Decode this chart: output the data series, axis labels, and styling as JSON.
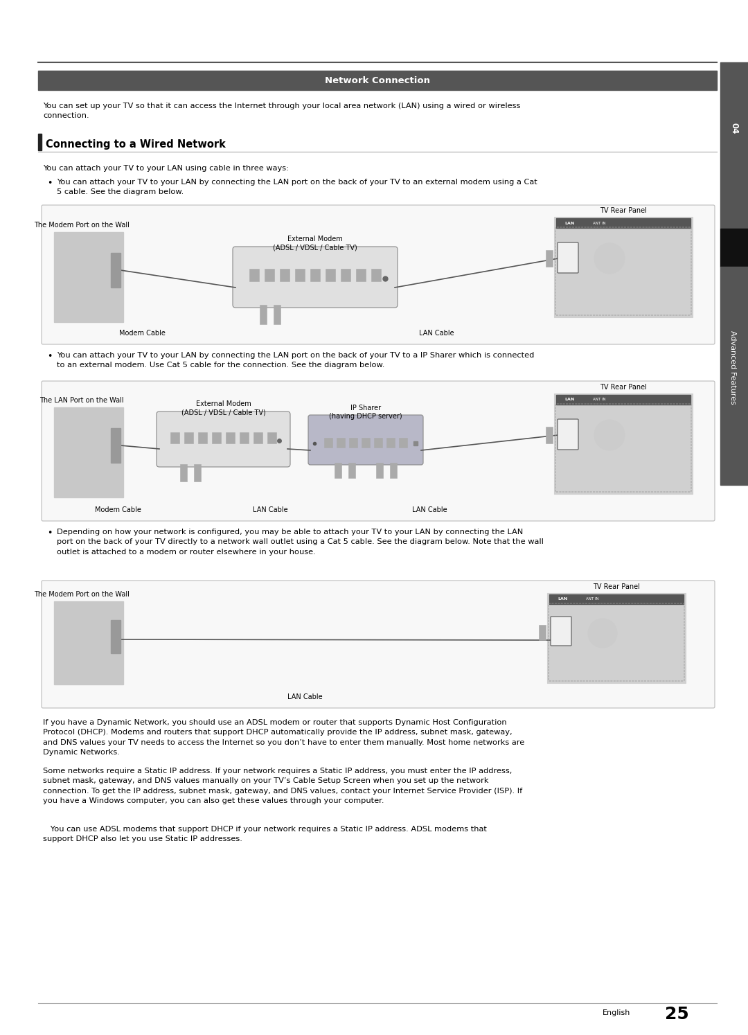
{
  "page_bg": "#ffffff",
  "sidebar_bg": "#555555",
  "sidebar_dark_color": "#111111",
  "header_bg": "#555555",
  "header_text": "Network Connection",
  "header_text_color": "#ffffff",
  "section_title": "Connecting to a Wired Network",
  "section_title_bar_color": "#222222",
  "body_font_size": 8.2,
  "title_font_size": 10.5,
  "header_font_size": 9.5,
  "intro_text": "You can set up your TV so that it can access the Internet through your local area network (LAN) using a wired or wireless\nconnection.",
  "section_intro": "You can attach your TV to your LAN using cable in three ways:",
  "bullet1_text": "You can attach your TV to your LAN by connecting the LAN port on the back of your TV to an external modem using a Cat\n5 cable. See the diagram below.",
  "bullet2_text": "You can attach your TV to your LAN by connecting the LAN port on the back of your TV to a IP Sharer which is connected\nto an external modem. Use Cat 5 cable for the connection. See the diagram below.",
  "bullet3_text": "Depending on how your network is configured, you may be able to attach your TV to your LAN by connecting the LAN\nport on the back of your TV directly to a network wall outlet using a Cat 5 cable. See the diagram below. Note that the wall\noutlet is attached to a modem or router elsewhere in your house.",
  "footer_text1": "If you have a Dynamic Network, you should use an ADSL modem or router that supports Dynamic Host Configuration\nProtocol (DHCP). Modems and routers that support DHCP automatically provide the IP address, subnet mask, gateway,\nand DNS values your TV needs to access the Internet so you don’t have to enter them manually. Most home networks are\nDynamic Networks.",
  "footer_text2": "Some networks require a Static IP address. If your network requires a Static IP address, you must enter the IP address,\nsubnet mask, gateway, and DNS values manually on your TV’s Cable Setup Screen when you set up the network\nconnection. To get the IP address, subnet mask, gateway, and DNS values, contact your Internet Service Provider (ISP). If\nyou have a Windows computer, you can also get these values through your computer.",
  "note_text": "   You can use ADSL modems that support DHCP if your network requires a Static IP address. ADSL modems that\nsupport DHCP also let you use Static IP addresses.",
  "page_number": "25",
  "chapter_num": "04",
  "chapter_label": "Advanced Features",
  "diagram1_labels": {
    "wall_port": "The Modem Port on the Wall",
    "modem": "External Modem\n(ADSL / VDSL / Cable TV)",
    "modem_cable": "Modem Cable",
    "lan_cable": "LAN Cable",
    "tv_rear": "TV Rear Panel"
  },
  "diagram2_labels": {
    "wall_port": "The LAN Port on the Wall",
    "modem": "External Modem\n(ADSL / VDSL / Cable TV)",
    "ip_sharer": "IP Sharer\n(having DHCP server)",
    "modem_cable": "Modem Cable",
    "lan_cable1": "LAN Cable",
    "lan_cable2": "LAN Cable",
    "tv_rear": "TV Rear Panel"
  },
  "diagram3_labels": {
    "wall_port": "The Modem Port on the Wall",
    "lan_cable": "LAN Cable",
    "tv_rear": "TV Rear Panel"
  },
  "diagram_box_color": "#f8f8f8",
  "diagram_border_color": "#bbbbbb",
  "tv_panel_color": "#c8c8c8",
  "modem_color": "#e0e0e0",
  "wall_color": "#c0c0c0",
  "ip_sharer_color": "#b8b8c8"
}
